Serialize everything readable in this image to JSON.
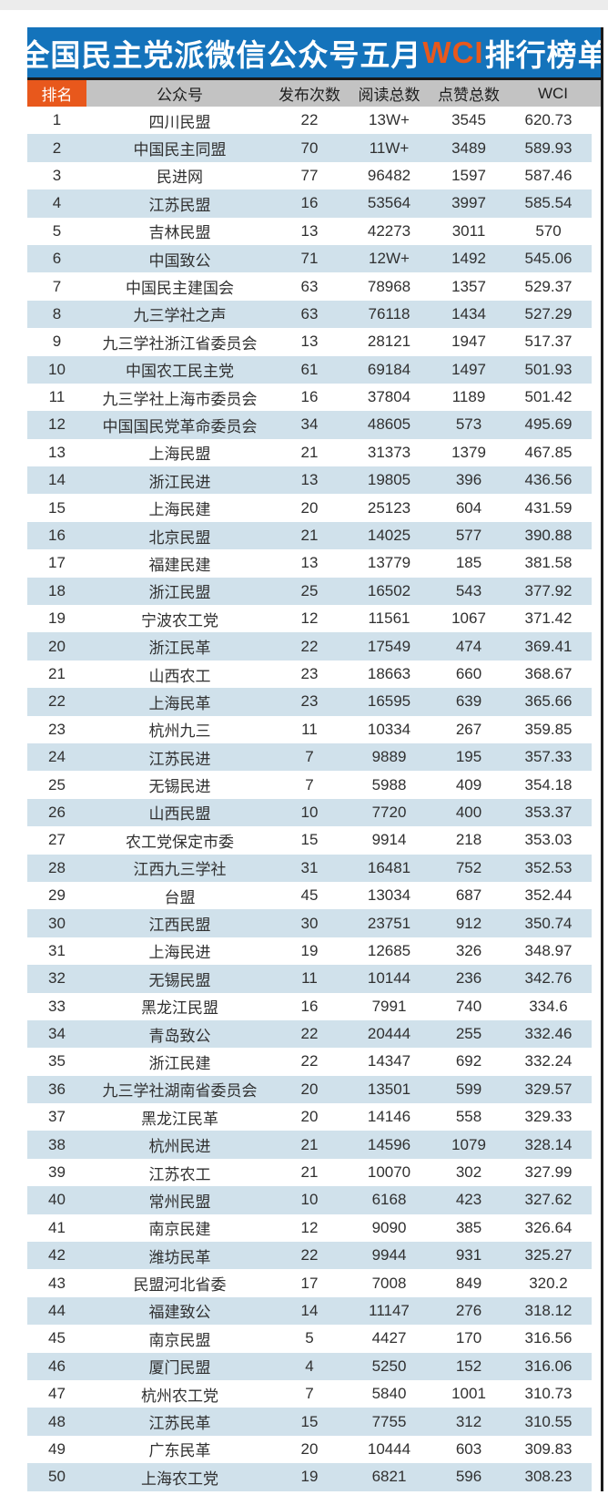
{
  "title": {
    "prefix": "全国民主党派微信公众号五月",
    "highlight": "WCI",
    "suffix": "排行榜单"
  },
  "colors": {
    "title_bar_blue": "#1473BB",
    "accent_orange": "#E8581C",
    "header_gray": "#C3C3C3",
    "stripe_blue": "#D0E1EB",
    "text": "#303030"
  },
  "chart_data": {
    "type": "table",
    "title": "全国民主党派微信公众号五月WCI排行榜单",
    "columns": [
      "排名",
      "公众号",
      "发布次数",
      "阅读总数",
      "点赞总数",
      "WCI"
    ],
    "rows": [
      [
        "1",
        "四川民盟",
        "22",
        "13W+",
        "3545",
        "620.73"
      ],
      [
        "2",
        "中国民主同盟",
        "70",
        "11W+",
        "3489",
        "589.93"
      ],
      [
        "3",
        "民进网",
        "77",
        "96482",
        "1597",
        "587.46"
      ],
      [
        "4",
        "江苏民盟",
        "16",
        "53564",
        "3997",
        "585.54"
      ],
      [
        "5",
        "吉林民盟",
        "13",
        "42273",
        "3011",
        "570"
      ],
      [
        "6",
        "中国致公",
        "71",
        "12W+",
        "1492",
        "545.06"
      ],
      [
        "7",
        "中国民主建国会",
        "63",
        "78968",
        "1357",
        "529.37"
      ],
      [
        "8",
        "九三学社之声",
        "63",
        "76118",
        "1434",
        "527.29"
      ],
      [
        "9",
        "九三学社浙江省委员会",
        "13",
        "28121",
        "1947",
        "517.37"
      ],
      [
        "10",
        "中国农工民主党",
        "61",
        "69184",
        "1497",
        "501.93"
      ],
      [
        "11",
        "九三学社上海市委员会",
        "16",
        "37804",
        "1189",
        "501.42"
      ],
      [
        "12",
        "中国国民党革命委员会",
        "34",
        "48605",
        "573",
        "495.69"
      ],
      [
        "13",
        "上海民盟",
        "21",
        "31373",
        "1379",
        "467.85"
      ],
      [
        "14",
        "浙江民进",
        "13",
        "19805",
        "396",
        "436.56"
      ],
      [
        "15",
        "上海民建",
        "20",
        "25123",
        "604",
        "431.59"
      ],
      [
        "16",
        "北京民盟",
        "21",
        "14025",
        "577",
        "390.88"
      ],
      [
        "17",
        "福建民建",
        "13",
        "13779",
        "185",
        "381.58"
      ],
      [
        "18",
        "浙江民盟",
        "25",
        "16502",
        "543",
        "377.92"
      ],
      [
        "19",
        "宁波农工党",
        "12",
        "11561",
        "1067",
        "371.42"
      ],
      [
        "20",
        "浙江民革",
        "22",
        "17549",
        "474",
        "369.41"
      ],
      [
        "21",
        "山西农工",
        "23",
        "18663",
        "660",
        "368.67"
      ],
      [
        "22",
        "上海民革",
        "23",
        "16595",
        "639",
        "365.66"
      ],
      [
        "23",
        "杭州九三",
        "11",
        "10334",
        "267",
        "359.85"
      ],
      [
        "24",
        "江苏民进",
        "7",
        "9889",
        "195",
        "357.33"
      ],
      [
        "25",
        "无锡民进",
        "7",
        "5988",
        "409",
        "354.18"
      ],
      [
        "26",
        "山西民盟",
        "10",
        "7720",
        "400",
        "353.37"
      ],
      [
        "27",
        "农工党保定市委",
        "15",
        "9914",
        "218",
        "353.03"
      ],
      [
        "28",
        "江西九三学社",
        "31",
        "16481",
        "752",
        "352.53"
      ],
      [
        "29",
        "台盟",
        "45",
        "13034",
        "687",
        "352.44"
      ],
      [
        "30",
        "江西民盟",
        "30",
        "23751",
        "912",
        "350.74"
      ],
      [
        "31",
        "上海民进",
        "19",
        "12685",
        "326",
        "348.97"
      ],
      [
        "32",
        "无锡民盟",
        "11",
        "10144",
        "236",
        "342.76"
      ],
      [
        "33",
        "黑龙江民盟",
        "16",
        "7991",
        "740",
        "334.6"
      ],
      [
        "34",
        "青岛致公",
        "22",
        "20444",
        "255",
        "332.46"
      ],
      [
        "35",
        "浙江民建",
        "22",
        "14347",
        "692",
        "332.24"
      ],
      [
        "36",
        "九三学社湖南省委员会",
        "20",
        "13501",
        "599",
        "329.57"
      ],
      [
        "37",
        "黑龙江民革",
        "20",
        "14146",
        "558",
        "329.33"
      ],
      [
        "38",
        "杭州民进",
        "21",
        "14596",
        "1079",
        "328.14"
      ],
      [
        "39",
        "江苏农工",
        "21",
        "10070",
        "302",
        "327.99"
      ],
      [
        "40",
        "常州民盟",
        "10",
        "6168",
        "423",
        "327.62"
      ],
      [
        "41",
        "南京民建",
        "12",
        "9090",
        "385",
        "326.64"
      ],
      [
        "42",
        "潍坊民革",
        "22",
        "9944",
        "931",
        "325.27"
      ],
      [
        "43",
        "民盟河北省委",
        "17",
        "7008",
        "849",
        "320.2"
      ],
      [
        "44",
        "福建致公",
        "14",
        "11147",
        "276",
        "318.12"
      ],
      [
        "45",
        "南京民盟",
        "5",
        "4427",
        "170",
        "316.56"
      ],
      [
        "46",
        "厦门民盟",
        "4",
        "5250",
        "152",
        "316.06"
      ],
      [
        "47",
        "杭州农工党",
        "7",
        "5840",
        "1001",
        "310.73"
      ],
      [
        "48",
        "江苏民革",
        "15",
        "7755",
        "312",
        "310.55"
      ],
      [
        "49",
        "广东民革",
        "20",
        "10444",
        "603",
        "309.83"
      ],
      [
        "50",
        "上海农工党",
        "19",
        "6821",
        "596",
        "308.23"
      ]
    ]
  }
}
